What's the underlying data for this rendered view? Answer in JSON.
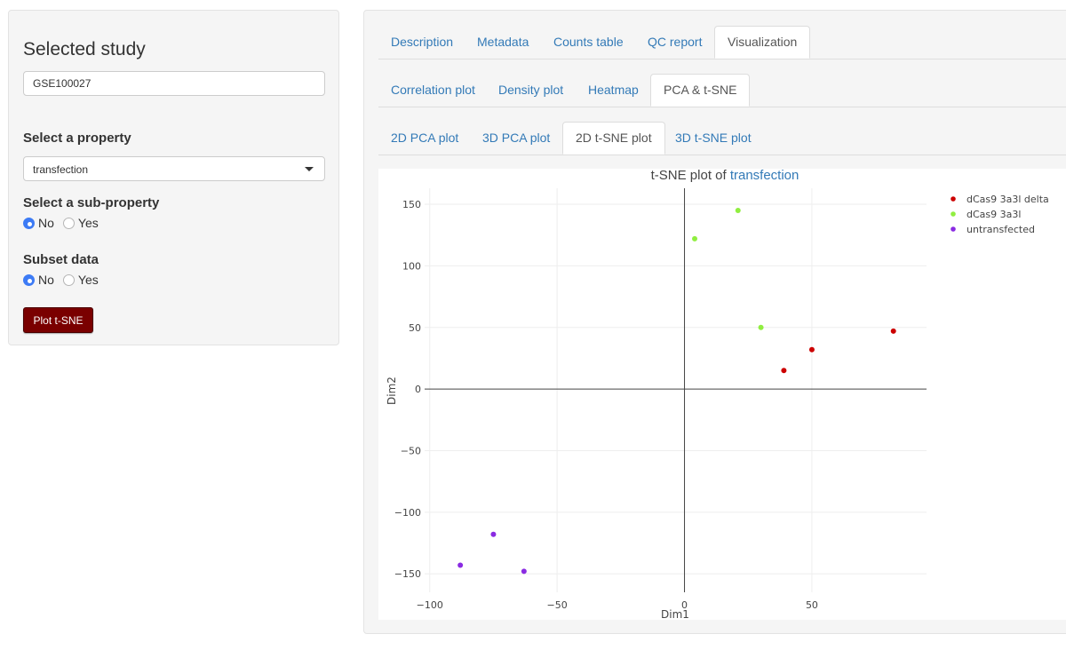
{
  "sidebar": {
    "title": "Selected study",
    "study_input_value": "GSE100027",
    "property_label": "Select a property",
    "property_value": "transfection",
    "subproperty_label": "Select a sub-property",
    "subproperty_options": [
      "No",
      "Yes"
    ],
    "subproperty_selected": "No",
    "subset_label": "Subset data",
    "subset_options": [
      "No",
      "Yes"
    ],
    "subset_selected": "No",
    "plot_button_label": "Plot t-SNE"
  },
  "main": {
    "tabs_level1": [
      "Description",
      "Metadata",
      "Counts table",
      "QC report",
      "Visualization"
    ],
    "tabs_level1_active": "Visualization",
    "tabs_level2": [
      "Correlation plot",
      "Density plot",
      "Heatmap",
      "PCA & t-SNE"
    ],
    "tabs_level2_active": "PCA & t-SNE",
    "tabs_level3": [
      "2D PCA plot",
      "3D PCA plot",
      "2D t-SNE plot",
      "3D t-SNE plot"
    ],
    "tabs_level3_active": "2D t-SNE plot"
  },
  "colors": {
    "accent_link": "#337ab7",
    "button_bg": "#7a0000",
    "radio_on": "#3d7bf5"
  },
  "chart_data": {
    "type": "scatter",
    "title_prefix": "t-SNE plot of ",
    "title_highlight": "transfection",
    "xlabel": "Dim1",
    "ylabel": "Dim2",
    "xlim": [
      -102,
      95
    ],
    "ylim": [
      -165,
      163
    ],
    "xticks": [
      -100,
      -50,
      0,
      50
    ],
    "yticks": [
      -150,
      -100,
      -50,
      0,
      50,
      100,
      150
    ],
    "grid": true,
    "legend_position": "top-right",
    "series": [
      {
        "name": "dCas9 3a3l delta",
        "color": "#cc0000",
        "points": [
          [
            39,
            15
          ],
          [
            50,
            32
          ],
          [
            82,
            47
          ]
        ]
      },
      {
        "name": "dCas9 3a3l",
        "color": "#90ee40",
        "points": [
          [
            4,
            122
          ],
          [
            21,
            145
          ],
          [
            30,
            50
          ]
        ]
      },
      {
        "name": "untransfected",
        "color": "#8a2be2",
        "points": [
          [
            -88,
            -143
          ],
          [
            -75,
            -118
          ],
          [
            -63,
            -148
          ]
        ]
      }
    ]
  }
}
